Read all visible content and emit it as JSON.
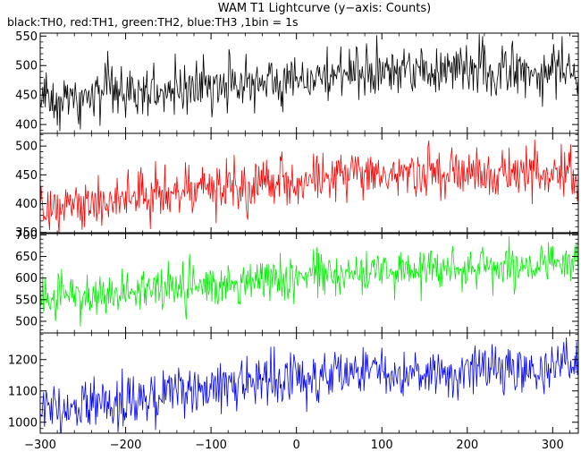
{
  "chart_data": {
    "type": "line",
    "title": "WAM T1 Lightcurve (y−axis: Counts)",
    "subtitle": "black:TH0, red:TH1, green:TH2, blue:TH3 ,1bin = 1s",
    "x_range": [
      -300,
      330
    ],
    "x_ticks": [
      -300,
      -200,
      -100,
      0,
      100,
      200,
      300
    ],
    "x_tick_labels": [
      "−300",
      "−200",
      "−100",
      "0",
      "100",
      "200",
      "300"
    ],
    "bin_seconds": 1,
    "panels": [
      {
        "series_label": "TH0",
        "color": "#000000",
        "ylim": [
          385,
          555
        ],
        "y_ticks": [
          400,
          450,
          500,
          550
        ],
        "trend": [
          [
            -300,
            440
          ],
          [
            -200,
            455
          ],
          [
            -100,
            465
          ],
          [
            0,
            478
          ],
          [
            100,
            490
          ],
          [
            200,
            492
          ],
          [
            330,
            492
          ]
        ],
        "noise_sd": 22
      },
      {
        "series_label": "TH1",
        "color": "#ff0000",
        "ylim": [
          348,
          522
        ],
        "y_ticks": [
          350,
          400,
          450,
          500
        ],
        "trend": [
          [
            -300,
            395
          ],
          [
            -200,
            412
          ],
          [
            -100,
            425
          ],
          [
            0,
            438
          ],
          [
            100,
            448
          ],
          [
            200,
            450
          ],
          [
            330,
            452
          ]
        ],
        "noise_sd": 22
      },
      {
        "series_label": "TH2",
        "color": "#00ee00",
        "ylim": [
          473,
          705
        ],
        "y_ticks": [
          500,
          550,
          600,
          650,
          700
        ],
        "trend": [
          [
            -300,
            555
          ],
          [
            -200,
            568
          ],
          [
            -100,
            585
          ],
          [
            0,
            603
          ],
          [
            100,
            615
          ],
          [
            200,
            625
          ],
          [
            330,
            628
          ]
        ],
        "noise_sd": 25
      },
      {
        "series_label": "TH3",
        "color": "#0000ff",
        "ylim": [
          965,
          1285
        ],
        "y_ticks": [
          1000,
          1100,
          1200
        ],
        "trend": [
          [
            -300,
            1040
          ],
          [
            -200,
            1070
          ],
          [
            -100,
            1110
          ],
          [
            0,
            1140
          ],
          [
            100,
            1160
          ],
          [
            200,
            1168
          ],
          [
            330,
            1172
          ]
        ],
        "noise_sd": 40
      }
    ]
  }
}
